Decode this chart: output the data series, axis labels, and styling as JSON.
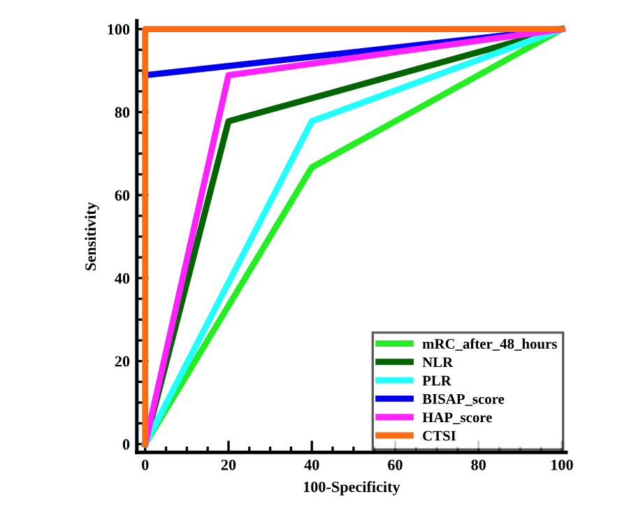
{
  "chart_data": {
    "type": "line",
    "xlabel": "100-Specificity",
    "ylabel": "Sensitivity",
    "xlim": [
      -2,
      101
    ],
    "ylim": [
      -2,
      102
    ],
    "xticks": [
      0,
      20,
      40,
      60,
      80,
      100
    ],
    "yticks": [
      0,
      20,
      40,
      60,
      80,
      100
    ],
    "grid": false,
    "legend": "bottom right",
    "marker": "none",
    "line_style": "solid",
    "series": [
      {
        "name": "mRC_after_48_hours",
        "color": "#22ee22",
        "x": [
          0,
          40,
          100
        ],
        "values": [
          0,
          66.7,
          100
        ]
      },
      {
        "name": "NLR",
        "color": "#006400",
        "x": [
          0,
          20,
          100
        ],
        "values": [
          0,
          77.8,
          100
        ]
      },
      {
        "name": "PLR",
        "color": "#22ffff",
        "x": [
          0,
          40,
          100
        ],
        "values": [
          0,
          77.8,
          100
        ]
      },
      {
        "name": "BISAP_score",
        "color": "#0000ee",
        "x": [
          0,
          100
        ],
        "values": [
          88.9,
          100
        ]
      },
      {
        "name": "HAP_score",
        "color": "#ff22ff",
        "x": [
          0,
          20,
          100
        ],
        "values": [
          0,
          88.9,
          100
        ]
      },
      {
        "name": "CTSI",
        "color": "#ff6a10",
        "x": [
          0,
          0,
          100
        ],
        "values": [
          0,
          100,
          100
        ]
      }
    ]
  }
}
